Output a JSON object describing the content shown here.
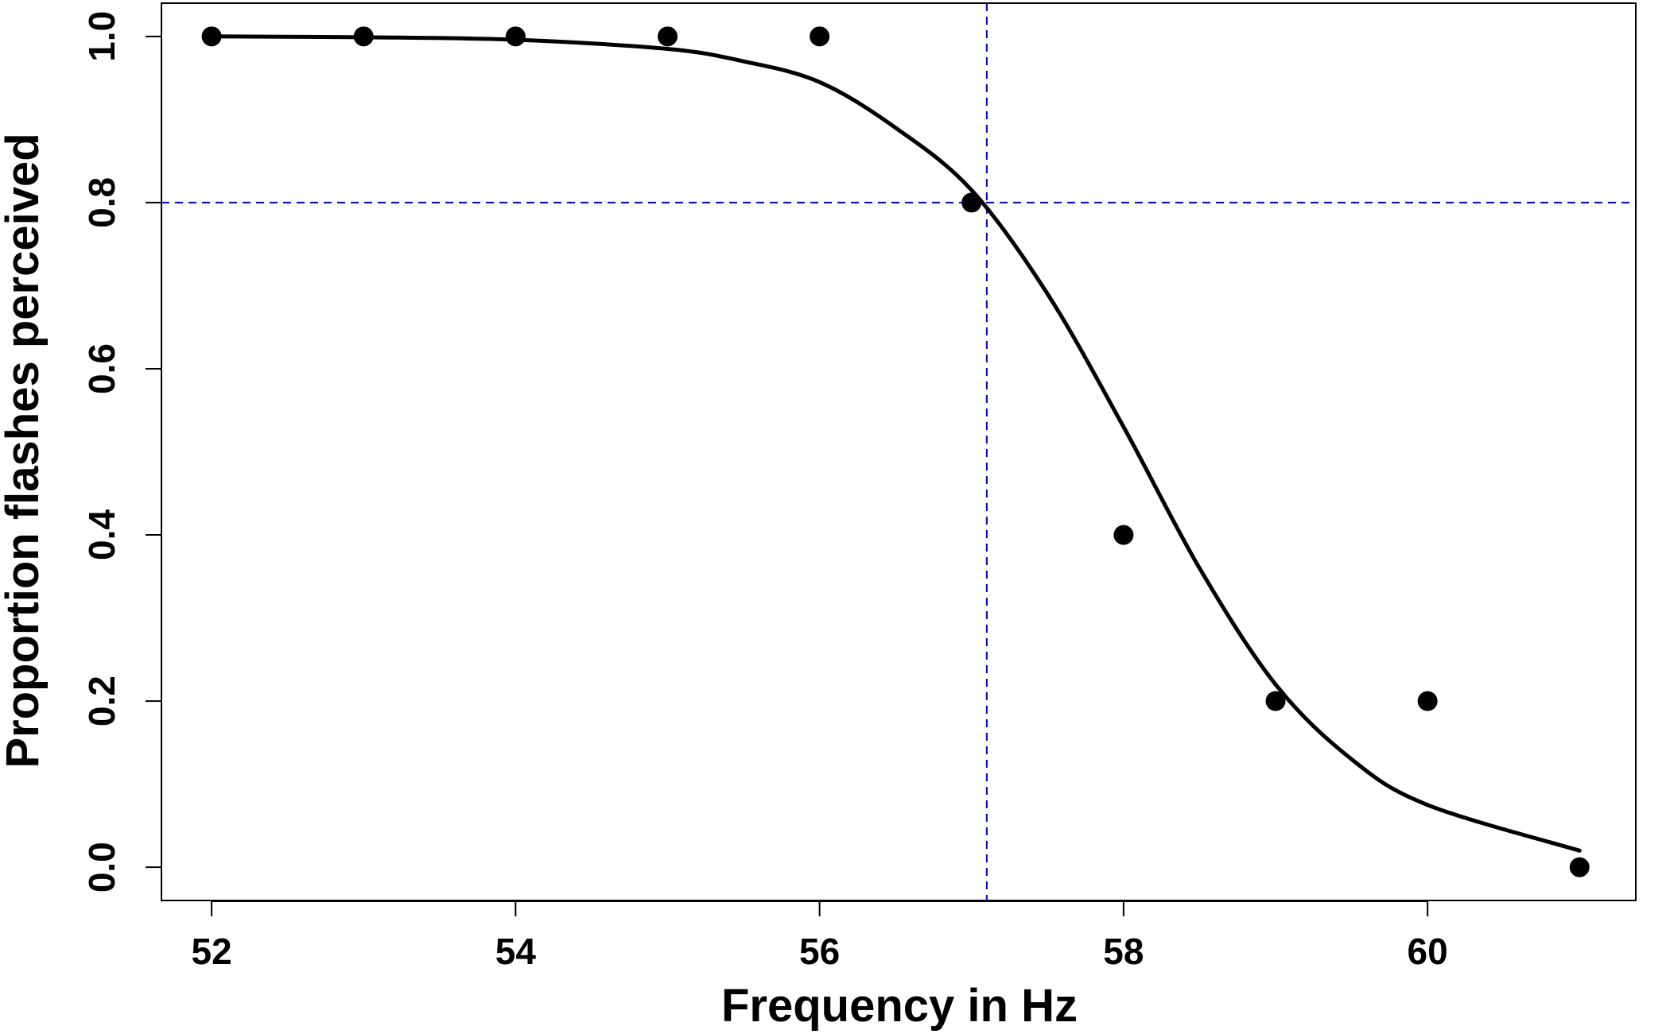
{
  "chart_data": {
    "type": "scatter",
    "title": "",
    "xlabel": "Frequency in Hz",
    "ylabel": "Proportion flashes perceived",
    "xlim": [
      51.67,
      61.37
    ],
    "ylim": [
      -0.04,
      1.04
    ],
    "x_ticks": [
      52,
      54,
      56,
      58,
      60
    ],
    "x_tick_labels": [
      "52",
      "54",
      "56",
      "58",
      "60"
    ],
    "y_ticks": [
      0.0,
      0.2,
      0.4,
      0.6,
      0.8,
      1.0
    ],
    "y_tick_labels": [
      "0.0",
      "0.2",
      "0.4",
      "0.6",
      "0.8",
      "1.0"
    ],
    "grid": false,
    "series": [
      {
        "kind": "points",
        "color": "#000000",
        "x": [
          52,
          53,
          54,
          55,
          56,
          57,
          58,
          59,
          60,
          61
        ],
        "y": [
          1.0,
          1.0,
          1.0,
          1.0,
          1.0,
          0.8,
          0.4,
          0.2,
          0.2,
          0.0
        ]
      },
      {
        "kind": "fitted-curve",
        "color": "#000000",
        "x": [
          52,
          53,
          54,
          55,
          55.5,
          56,
          56.5,
          57,
          57.5,
          58,
          58.5,
          59,
          59.5,
          60,
          61
        ],
        "y": [
          1.0,
          0.999,
          0.996,
          0.985,
          0.97,
          0.945,
          0.89,
          0.815,
          0.69,
          0.53,
          0.36,
          0.22,
          0.13,
          0.075,
          0.02
        ]
      }
    ],
    "reference_lines": {
      "color": "#0000cc",
      "style": "dashed",
      "horizontal_y": 0.8,
      "vertical_x": 57.1
    }
  }
}
